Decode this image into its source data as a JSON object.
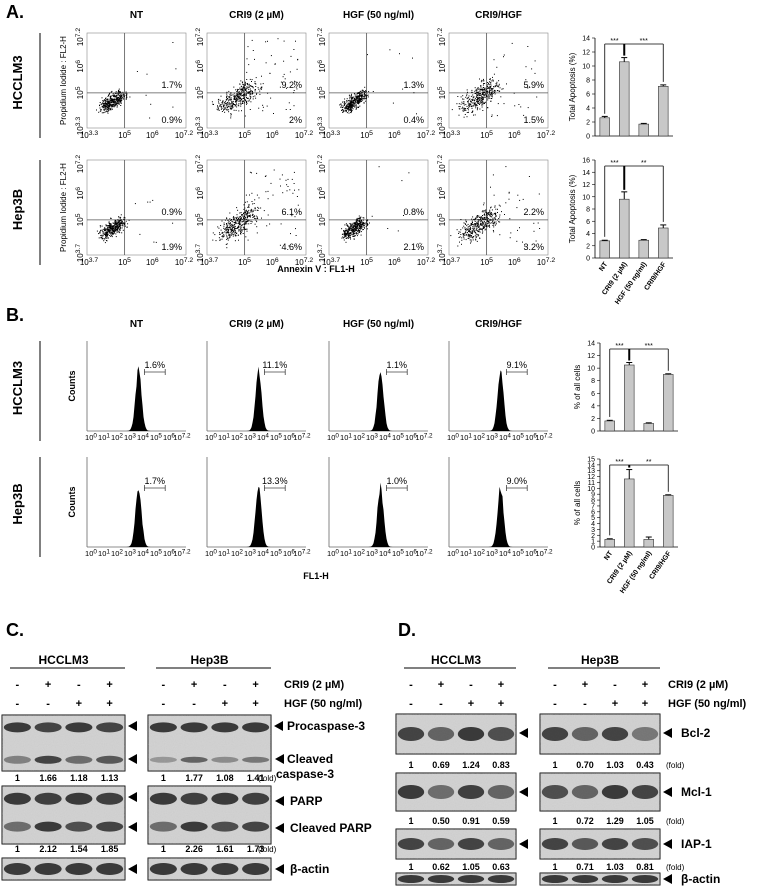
{
  "panel_letters": {
    "a": "A.",
    "b": "B.",
    "c": "C.",
    "d": "D."
  },
  "conditions": [
    "NT",
    "CRI9 (2 µM)",
    "HGF (50 ng/ml)",
    "CRI9/HGF"
  ],
  "cell_lines": [
    "HCCLM3",
    "Hep3B"
  ],
  "panel_a": {
    "ylabel": "Propidium Iodide : FL2-H",
    "xlabel": "Annexin V : FL1-H",
    "rows": [
      {
        "cell": "HCCLM3",
        "xticks": [
          "10^3.3",
          "10^5",
          "10^6",
          "10^7.2"
        ],
        "yticks": [
          "10^3.3",
          "10^5",
          "10^6",
          "10^7.2"
        ],
        "upper_right": [
          "1.7%",
          "9.2%",
          "1.3%",
          "5.9%"
        ],
        "lower_right": [
          "0.9%",
          "2%",
          "0.4%",
          "1.5%"
        ]
      },
      {
        "cell": "Hep3B",
        "xticks": [
          "10^3.7",
          "10^5",
          "10^6",
          "10^7.2"
        ],
        "yticks": [
          "10^3.7",
          "10^5",
          "10^6",
          "10^7.2"
        ],
        "upper_right": [
          "0.9%",
          "6.1%",
          "0.8%",
          "2.2%"
        ],
        "lower_right": [
          "1.9%",
          "4.6%",
          "2.1%",
          "3.2%"
        ]
      }
    ]
  },
  "panel_b": {
    "ylabel": "Counts",
    "xlabel": "FL1-H",
    "xticks": [
      "10^0",
      "10^1",
      "10^2",
      "10^3",
      "10^4",
      "10^5",
      "10^6",
      "10^7.2"
    ],
    "rows": [
      {
        "cell": "HCCLM3",
        "gate": [
          "1.6%",
          "11.1%",
          "1.1%",
          "9.1%"
        ]
      },
      {
        "cell": "Hep3B",
        "gate": [
          "1.7%",
          "13.3%",
          "1.0%",
          "9.0%"
        ]
      }
    ]
  },
  "chart_data": [
    {
      "type": "bar",
      "title": "",
      "xlabel": "",
      "ylabel": "Total Apoptosis (%)",
      "categories": [
        "NT",
        "CRI9 (2 µM)",
        "HGF (50 ng/ml)",
        "CRI9/HGF"
      ],
      "values": [
        2.6,
        10.6,
        1.7,
        7.1
      ],
      "errors": [
        0.2,
        0.6,
        0.1,
        0.2
      ],
      "ylim": [
        0,
        14
      ],
      "yticks": [
        0,
        2,
        4,
        6,
        8,
        10,
        12,
        14
      ],
      "significance": [
        "***",
        "***"
      ],
      "show_categories": false
    },
    {
      "type": "bar",
      "title": "",
      "xlabel": "",
      "ylabel": "Total Apoptosis (%)",
      "categories": [
        "NT",
        "CRI9 (2 µM)",
        "HGF (50 ng/ml)",
        "CRI9/HGF"
      ],
      "values": [
        2.8,
        9.6,
        2.9,
        4.9
      ],
      "errors": [
        0.1,
        1.2,
        0.1,
        0.5
      ],
      "ylim": [
        0,
        16
      ],
      "yticks": [
        0,
        2,
        4,
        6,
        8,
        10,
        12,
        14,
        16
      ],
      "significance": [
        "***",
        "**"
      ],
      "show_categories": true
    },
    {
      "type": "bar",
      "title": "",
      "xlabel": "",
      "ylabel": "% of all cells",
      "categories": [
        "NT",
        "CRI9 (2 µM)",
        "HGF (50 ng/ml)",
        "CRI9/HGF"
      ],
      "values": [
        1.6,
        10.5,
        1.2,
        9.0
      ],
      "errors": [
        0.1,
        0.4,
        0.1,
        0.1
      ],
      "ylim": [
        0,
        14
      ],
      "yticks": [
        0,
        2,
        4,
        6,
        8,
        10,
        12,
        14
      ],
      "significance": [
        "***",
        "***"
      ],
      "show_categories": false
    },
    {
      "type": "bar",
      "title": "",
      "xlabel": "",
      "ylabel": "% of all cells",
      "categories": [
        "NT",
        "CRI9 (2 µM)",
        "HGF (50 ng/ml)",
        "CRI9/HGF"
      ],
      "values": [
        1.3,
        11.6,
        1.3,
        8.8
      ],
      "errors": [
        0.1,
        1.6,
        0.4,
        0.1
      ],
      "ylim": [
        0,
        15
      ],
      "yticks": [
        0,
        1,
        2,
        3,
        4,
        5,
        6,
        7,
        8,
        9,
        10,
        11,
        12,
        13,
        14,
        15
      ],
      "significance": [
        "***",
        "**"
      ],
      "show_categories": true
    }
  ],
  "panel_c": {
    "treatments": [
      {
        "label": "CRI9 (2 µM)",
        "signs": [
          "-",
          "+",
          "-",
          "+"
        ]
      },
      {
        "label": "HGF (50 ng/ml)",
        "signs": [
          "-",
          "-",
          "+",
          "+"
        ]
      }
    ],
    "blot_labels": {
      "procaspase": "Procaspase-3",
      "cleaved_caspase_1": "Cleaved",
      "cleaved_caspase_2": "caspase-3",
      "parp": "PARP",
      "cleaved_parp": "Cleaved PARP",
      "actin": "β-actin"
    },
    "fold_caspase": [
      [
        "1",
        "1.66",
        "1.18",
        "1.13"
      ],
      [
        "1",
        "1.77",
        "1.08",
        "1.41"
      ]
    ],
    "fold_parp": [
      [
        "1",
        "2.12",
        "1.54",
        "1.85"
      ],
      [
        "1",
        "2.26",
        "1.61",
        "1.73"
      ]
    ],
    "fold_unit": "(fold)"
  },
  "panel_d": {
    "treatments": [
      {
        "label": "CRI9 (2 µM)",
        "signs": [
          "-",
          "+",
          "-",
          "+"
        ]
      },
      {
        "label": "HGF (50 ng/ml)",
        "signs": [
          "-",
          "-",
          "+",
          "+"
        ]
      }
    ],
    "blot_labels": {
      "bcl2": "Bcl-2",
      "mcl1": "Mcl-1",
      "iap1": "IAP-1",
      "actin": "β-actin"
    },
    "fold_bcl2": [
      [
        "1",
        "0.69",
        "1.24",
        "0.83"
      ],
      [
        "1",
        "0.70",
        "1.03",
        "0.43"
      ]
    ],
    "fold_mcl1": [
      [
        "1",
        "0.50",
        "0.91",
        "0.59"
      ],
      [
        "1",
        "0.72",
        "1.29",
        "1.05"
      ]
    ],
    "fold_iap1": [
      [
        "1",
        "0.62",
        "1.05",
        "0.63"
      ],
      [
        "1",
        "0.71",
        "1.03",
        "0.81"
      ]
    ],
    "fold_unit": "(fold)"
  }
}
